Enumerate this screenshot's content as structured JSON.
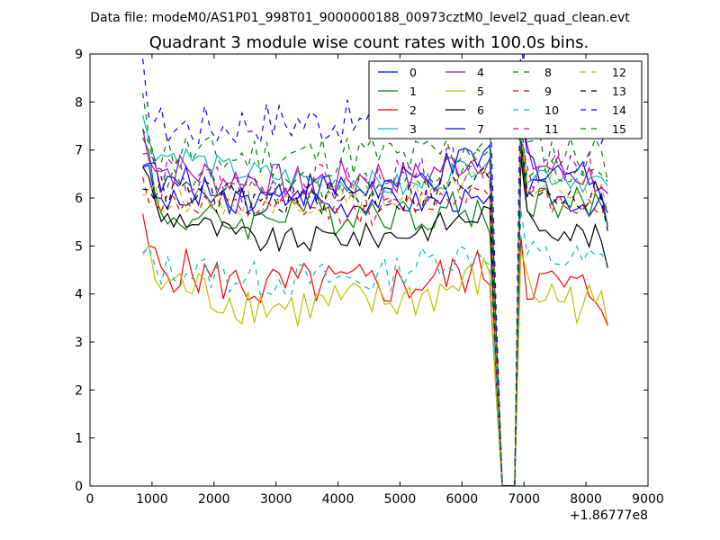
{
  "header": {
    "data_file": "Data file: modeM0/AS1P01_998T01_9000000188_00973cztM0_level2_quad_clean.evt"
  },
  "chart_data": {
    "type": "line",
    "title": "Quadrant 3 module wise count rates with 100.0s bins.",
    "xlabel": "",
    "ylabel": "",
    "x_offset_label": "+1.86777e8",
    "xlim": [
      0,
      9000
    ],
    "ylim": [
      0,
      9
    ],
    "x_ticks": [
      "0",
      "1000",
      "2000",
      "3000",
      "4000",
      "5000",
      "6000",
      "7000",
      "8000",
      "9000"
    ],
    "y_ticks": [
      "0",
      "1",
      "2",
      "3",
      "4",
      "5",
      "6",
      "7",
      "8",
      "9"
    ],
    "x_start": 850,
    "x_step": 100,
    "gap_end_x": 6650,
    "gap_resume_x": 6850,
    "x_end": 8350,
    "legend_position": "upper-right",
    "series": [
      {
        "name": "0",
        "color": "#0000ff",
        "dash": "solid",
        "levels": [
          6.8,
          5.9,
          6.0,
          5.8,
          6.1,
          5.8,
          6.0,
          5.9,
          6.0,
          5.8,
          6.2,
          5.4
        ]
      },
      {
        "name": "1",
        "color": "#008000",
        "dash": "solid",
        "levels": [
          7.6,
          5.6,
          5.5,
          5.5,
          5.9,
          5.6,
          5.8,
          5.6,
          5.8,
          5.6,
          6.0,
          5.6
        ]
      },
      {
        "name": "2",
        "color": "#ff0000",
        "dash": "solid",
        "levels": [
          5.3,
          4.5,
          4.3,
          4.1,
          4.2,
          4.2,
          4.2,
          4.2,
          4.4,
          4.5,
          4.3,
          3.7
        ]
      },
      {
        "name": "3",
        "color": "#00bfbf",
        "dash": "solid",
        "levels": [
          7.6,
          6.9,
          6.6,
          6.5,
          6.4,
          6.4,
          6.3,
          6.2,
          6.5,
          6.9,
          6.6,
          6.0
        ]
      },
      {
        "name": "4",
        "color": "#bf00bf",
        "dash": "solid",
        "levels": [
          7.4,
          6.6,
          6.4,
          6.4,
          6.3,
          6.4,
          6.5,
          6.4,
          6.7,
          6.9,
          6.8,
          5.9
        ]
      },
      {
        "name": "5",
        "color": "#bfbf00",
        "dash": "solid",
        "levels": [
          4.9,
          4.2,
          3.9,
          3.8,
          3.7,
          3.8,
          3.8,
          3.9,
          4.1,
          4.4,
          4.1,
          3.3
        ]
      },
      {
        "name": "6",
        "color": "#000000",
        "dash": "solid",
        "levels": [
          6.8,
          5.6,
          5.3,
          5.1,
          5.1,
          5.2,
          5.2,
          5.3,
          5.5,
          5.7,
          5.6,
          4.6
        ]
      },
      {
        "name": "7",
        "color": "#0000ff",
        "dash": "solid",
        "levels": [
          7.0,
          6.3,
          6.1,
          6.0,
          6.2,
          6.2,
          6.2,
          6.3,
          6.6,
          6.9,
          6.8,
          5.9
        ]
      },
      {
        "name": "8",
        "color": "#008000",
        "dash": "dashed",
        "levels": [
          7.8,
          7.0,
          6.8,
          6.9,
          6.9,
          6.9,
          6.9,
          6.8,
          7.0,
          7.2,
          7.0,
          6.8
        ]
      },
      {
        "name": "9",
        "color": "#ff0000",
        "dash": "dashed",
        "levels": [
          6.3,
          5.9,
          5.8,
          5.7,
          5.8,
          5.7,
          5.7,
          5.9,
          6.0,
          6.3,
          6.0,
          5.7
        ]
      },
      {
        "name": "10",
        "color": "#00bfbf",
        "dash": "dashed",
        "levels": [
          4.8,
          4.5,
          4.4,
          4.3,
          4.3,
          4.3,
          4.3,
          4.6,
          4.8,
          4.9,
          4.8,
          4.5
        ]
      },
      {
        "name": "11",
        "color": "#bf00bf",
        "dash": "dashed",
        "levels": [
          7.0,
          6.4,
          6.3,
          6.2,
          6.3,
          6.2,
          6.3,
          6.3,
          6.6,
          6.8,
          6.7,
          6.1
        ]
      },
      {
        "name": "12",
        "color": "#bfbf00",
        "dash": "dashed",
        "levels": [
          6.2,
          6.0,
          5.9,
          5.9,
          5.9,
          6.0,
          6.0,
          6.1,
          6.2,
          6.4,
          6.3,
          5.8
        ]
      },
      {
        "name": "13",
        "color": "#000000",
        "dash": "dashed",
        "levels": [
          6.5,
          6.1,
          6.0,
          5.9,
          6.0,
          6.0,
          6.0,
          6.0,
          6.2,
          6.4,
          6.3,
          5.6
        ]
      },
      {
        "name": "14",
        "color": "#0000ff",
        "dash": "dashed",
        "levels": [
          8.5,
          7.5,
          7.5,
          7.6,
          7.6,
          7.6,
          7.5,
          7.6,
          7.8,
          8.2,
          8.0,
          7.1
        ]
      },
      {
        "name": "15",
        "color": "#008000",
        "dash": "dashed",
        "levels": [
          7.3,
          6.4,
          6.3,
          6.2,
          6.3,
          6.2,
          6.3,
          6.3,
          6.6,
          6.9,
          6.6,
          6.2
        ]
      }
    ]
  }
}
